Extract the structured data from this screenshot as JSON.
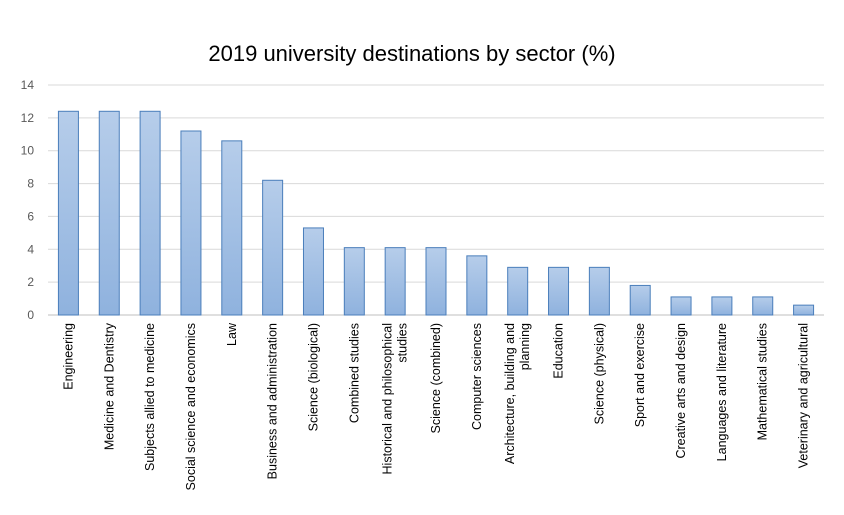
{
  "chart_data": {
    "type": "bar",
    "title": "2019 university destinations by sector (%)",
    "categories": [
      "Engineering",
      "Medicine and Dentistry",
      "Subjects allied to medicine",
      "Social science and economics",
      "Law",
      "Business and administration",
      "Science (biological)",
      "Combined studies",
      "Historical and philosophical studies",
      "Science (combined)",
      "Computer sciences",
      "Architecture, building and planning",
      "Education",
      "Science (physical)",
      "Sport and exercise",
      "Creative arts and design",
      "Languages and literature",
      "Mathematical studies",
      "Veterinary and agricultural"
    ],
    "category_lines": [
      [
        "Engineering"
      ],
      [
        "Medicine and Dentistry"
      ],
      [
        "Subjects allied to medicine"
      ],
      [
        "Social science and economics"
      ],
      [
        "Law"
      ],
      [
        "Business and administration"
      ],
      [
        "Science (biological)"
      ],
      [
        "Combined studies"
      ],
      [
        "Historical and philosophical",
        "studies"
      ],
      [
        "Science (combined)"
      ],
      [
        "Computer sciences"
      ],
      [
        "Architecture, building and",
        "planning"
      ],
      [
        "Education"
      ],
      [
        "Science (physical)"
      ],
      [
        "Sport and exercise"
      ],
      [
        "Creative arts and design"
      ],
      [
        "Languages and literature"
      ],
      [
        "Mathematical studies"
      ],
      [
        "Veterinary and agricultural"
      ]
    ],
    "values": [
      12.4,
      12.4,
      12.4,
      11.2,
      10.6,
      8.2,
      5.3,
      4.1,
      4.1,
      4.1,
      3.6,
      2.9,
      2.9,
      2.9,
      1.8,
      1.1,
      1.1,
      1.1,
      0.6
    ],
    "ylim": [
      0,
      14
    ],
    "yticks": [
      0,
      2,
      4,
      6,
      8,
      10,
      12,
      14
    ],
    "xlabel": "",
    "ylabel": "",
    "grid": true,
    "legend": "none",
    "colors": {
      "bar_top": "#b6cdea",
      "bar_bottom": "#8fb2de",
      "bar_border": "#4a7ebb",
      "grid": "#d9d9d9"
    }
  }
}
